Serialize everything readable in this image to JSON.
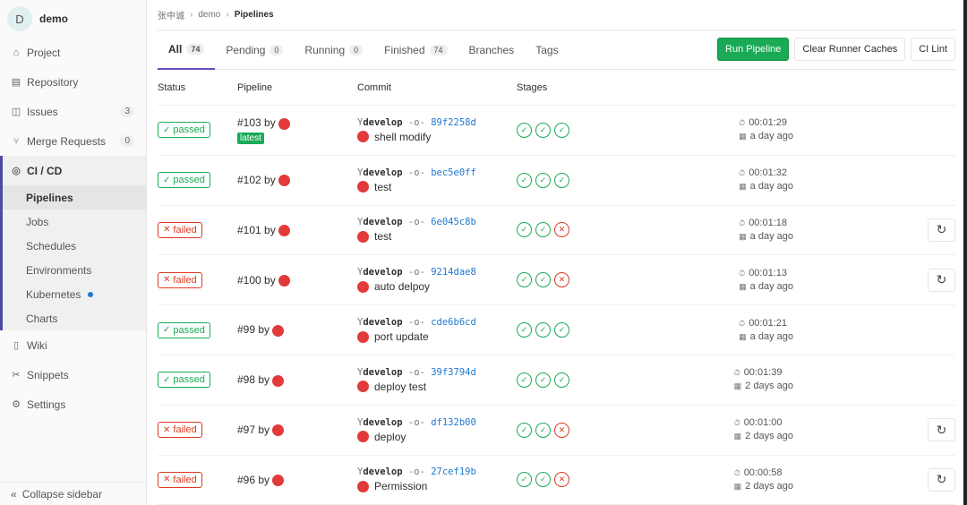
{
  "sidebar": {
    "project_initial": "D",
    "project_name": "demo",
    "items": [
      {
        "label": "Project",
        "icon": "home-icon"
      },
      {
        "label": "Repository",
        "icon": "doc-icon"
      },
      {
        "label": "Issues",
        "icon": "issues-icon",
        "badge": "3"
      },
      {
        "label": "Merge Requests",
        "icon": "merge-icon",
        "badge": "0"
      },
      {
        "label": "CI / CD",
        "icon": "rocket-icon"
      }
    ],
    "sub_items": [
      "Pipelines",
      "Jobs",
      "Schedules",
      "Environments",
      "Kubernetes",
      "Charts"
    ],
    "items_after": [
      {
        "label": "Wiki",
        "icon": "book-icon"
      },
      {
        "label": "Snippets",
        "icon": "scissors-icon"
      },
      {
        "label": "Settings",
        "icon": "gear-icon"
      }
    ],
    "collapse": "Collapse sidebar"
  },
  "breadcrumb": [
    "张中诚",
    "demo",
    "Pipelines"
  ],
  "tabs": [
    {
      "label": "All",
      "count": "74"
    },
    {
      "label": "Pending",
      "count": "0"
    },
    {
      "label": "Running",
      "count": "0"
    },
    {
      "label": "Finished",
      "count": "74"
    },
    {
      "label": "Branches"
    },
    {
      "label": "Tags"
    }
  ],
  "buttons": {
    "run": "Run Pipeline",
    "clear": "Clear Runner Caches",
    "lint": "CI Lint"
  },
  "columns": [
    "Status",
    "Pipeline",
    "Commit",
    "Stages"
  ],
  "rows": [
    {
      "status": "passed",
      "id": "#103",
      "by": "by",
      "latest": "latest",
      "ref": "develop",
      "sha": "89f2258d",
      "msg": "shell modify",
      "stages": [
        "s",
        "s",
        "s"
      ],
      "duration": "00:01:29",
      "ago": "a day ago"
    },
    {
      "status": "passed",
      "id": "#102",
      "by": "by",
      "ref": "develop",
      "sha": "bec5e0ff",
      "msg": "test",
      "stages": [
        "s",
        "s",
        "s"
      ],
      "duration": "00:01:32",
      "ago": "a day ago"
    },
    {
      "status": "failed",
      "id": "#101",
      "by": "by",
      "ref": "develop",
      "sha": "6e045c8b",
      "msg": "test",
      "stages": [
        "s",
        "s",
        "f"
      ],
      "duration": "00:01:18",
      "ago": "a day ago"
    },
    {
      "status": "failed",
      "id": "#100",
      "by": "by",
      "ref": "develop",
      "sha": "9214dae8",
      "msg": "auto delpoy",
      "stages": [
        "s",
        "s",
        "f"
      ],
      "duration": "00:01:13",
      "ago": "a day ago"
    },
    {
      "status": "passed",
      "id": "#99",
      "by": "by",
      "ref": "develop",
      "sha": "cde6b6cd",
      "msg": "port update",
      "stages": [
        "s",
        "s",
        "s"
      ],
      "duration": "00:01:21",
      "ago": "a day ago"
    },
    {
      "status": "passed",
      "id": "#98",
      "by": "by",
      "ref": "develop",
      "sha": "39f3794d",
      "msg": "deploy test",
      "stages": [
        "s",
        "s",
        "s"
      ],
      "duration": "00:01:39",
      "ago": "2 days ago"
    },
    {
      "status": "failed",
      "id": "#97",
      "by": "by",
      "ref": "develop",
      "sha": "df132b00",
      "msg": "deploy",
      "stages": [
        "s",
        "s",
        "f"
      ],
      "duration": "00:01:00",
      "ago": "2 days ago"
    },
    {
      "status": "failed",
      "id": "#96",
      "by": "by",
      "ref": "develop",
      "sha": "27cef19b",
      "msg": "Permission",
      "stages": [
        "s",
        "s",
        "f"
      ],
      "duration": "00:00:58",
      "ago": "2 days ago"
    }
  ],
  "colors": {
    "passed": "#1aaa55",
    "failed": "#db3b21",
    "accent": "#6b4fbb",
    "link": "#1f78d1"
  }
}
